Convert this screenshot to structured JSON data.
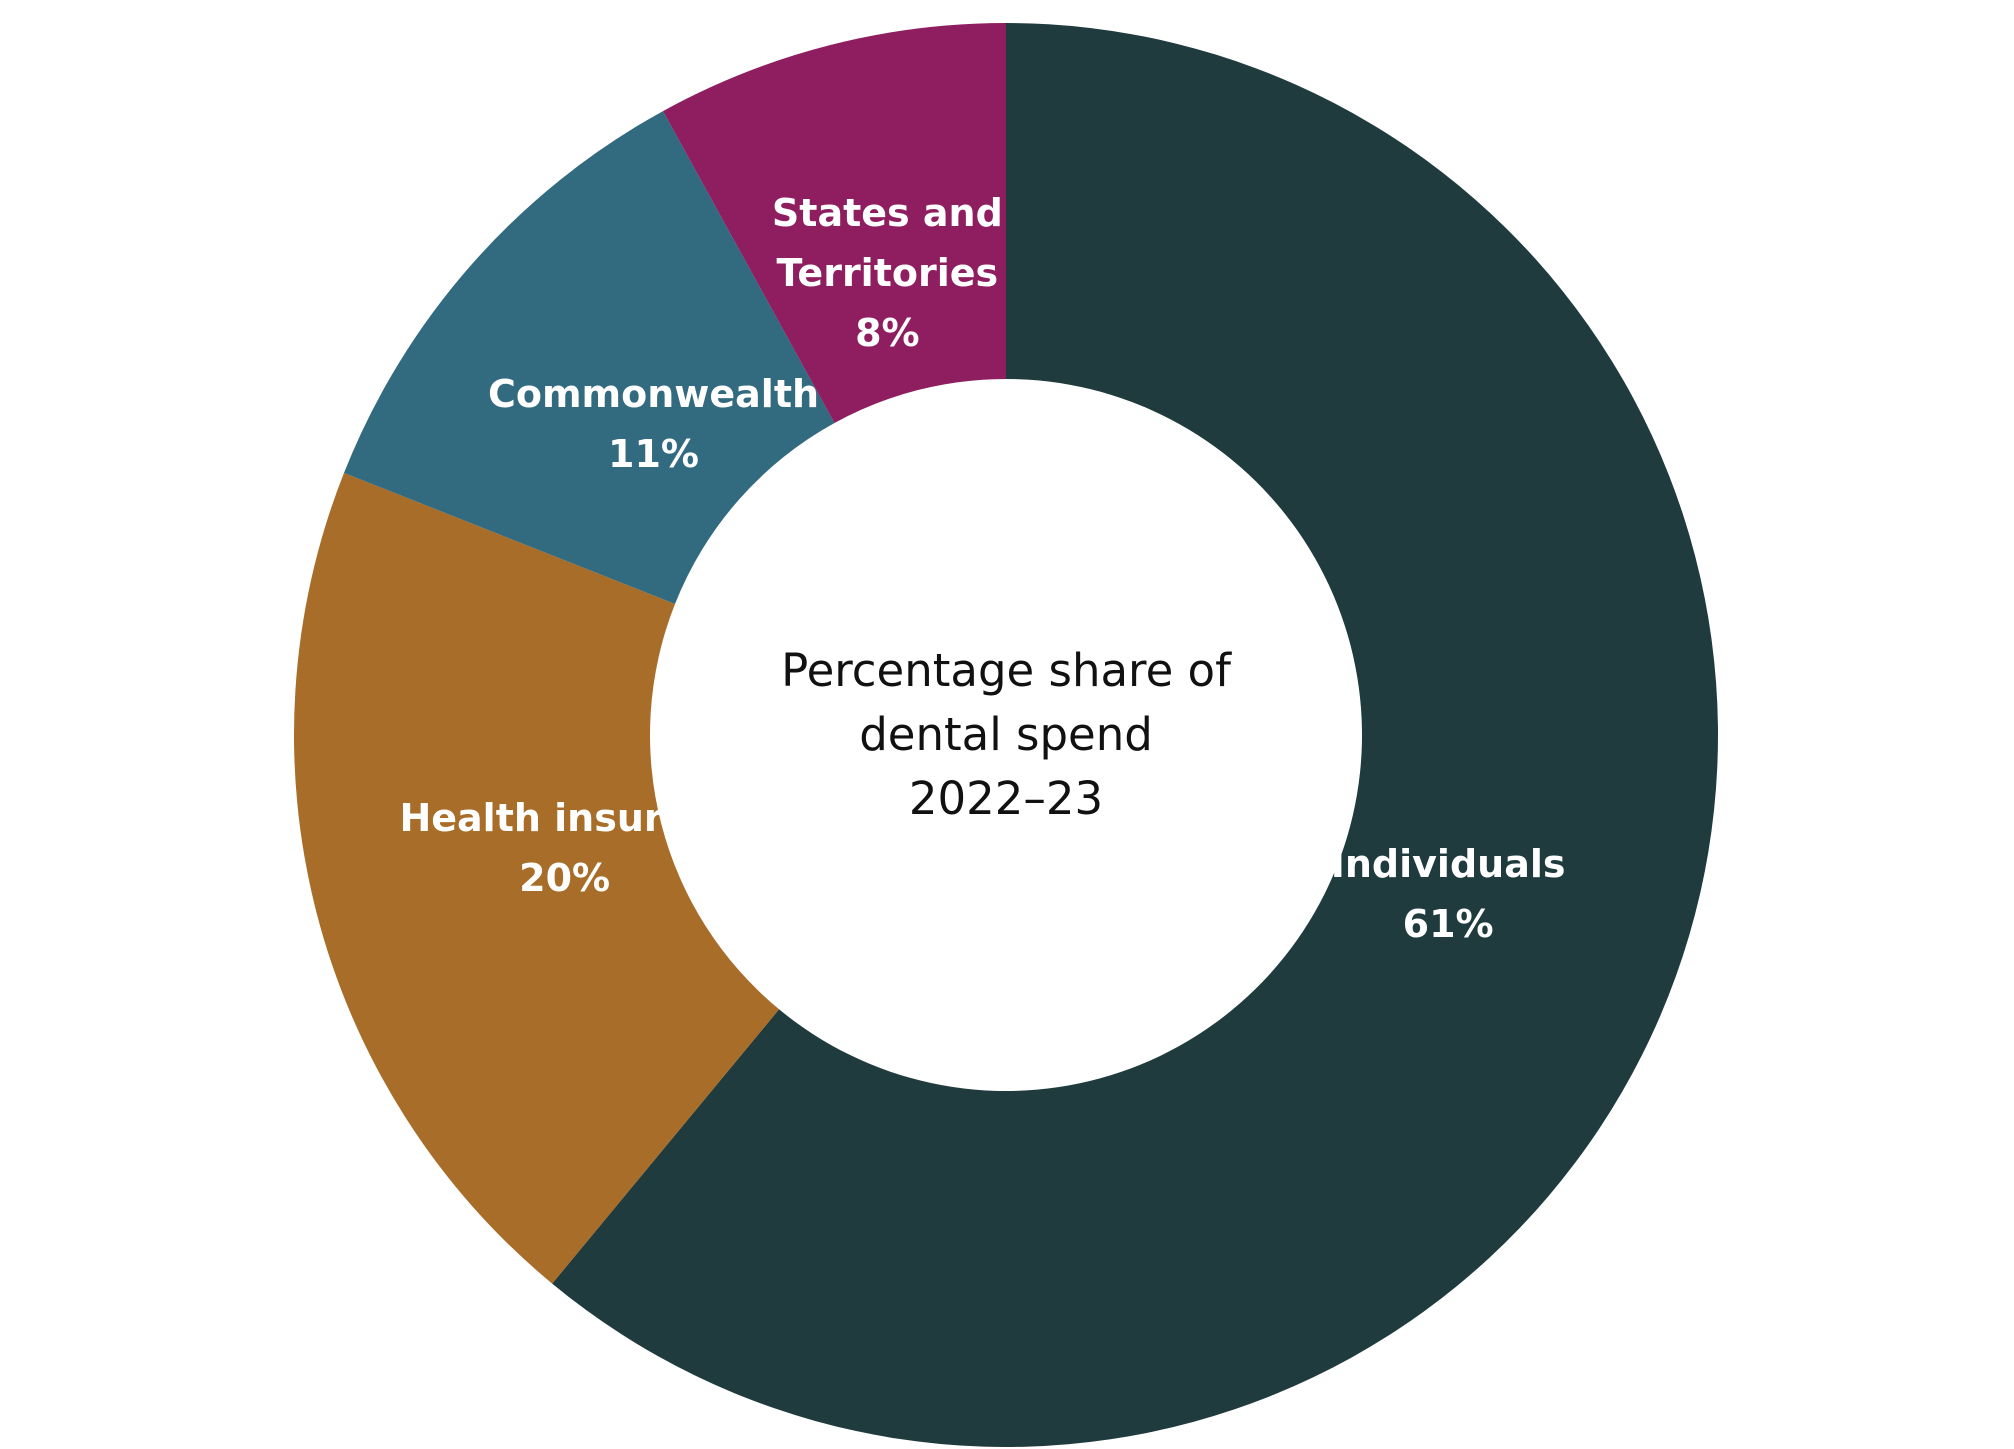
{
  "chart_data": {
    "type": "pie",
    "donut": true,
    "title": "Percentage share of dental spend 2022–23",
    "title_lines": [
      "Percentage share of",
      "dental spend",
      "2022–23"
    ],
    "unit": "%",
    "slices": [
      {
        "name": "Individuals",
        "name_lines": [
          "Individuals"
        ],
        "value": 61,
        "label": "61%",
        "color": "#1f3b3e"
      },
      {
        "name": "Health insurers",
        "name_lines": [
          "Health insurers"
        ],
        "value": 20,
        "label": "20%",
        "color": "#a86d28"
      },
      {
        "name": "Commonwealth",
        "name_lines": [
          "Commonwealth"
        ],
        "value": 11,
        "label": "11%",
        "color": "#326a80"
      },
      {
        "name": "States and Territories",
        "name_lines": [
          "States and",
          "Territories"
        ],
        "value": 8,
        "label": "8%",
        "color": "#8e1e5f"
      }
    ],
    "legend": "none"
  }
}
